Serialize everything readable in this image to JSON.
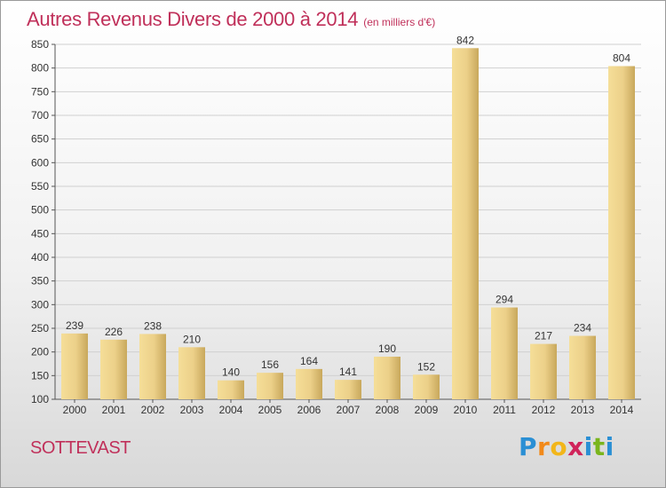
{
  "title": "Autres Revenus Divers de 2000 à 2014",
  "subtitle": "(en milliers d'€)",
  "place": "SOTTEVAST",
  "logo": {
    "text": "Proxiti",
    "letters": [
      {
        "ch": "P",
        "color": "#2a8fd4"
      },
      {
        "ch": "r",
        "color": "#f28a1a"
      },
      {
        "ch": "o",
        "color": "#f2b61a"
      },
      {
        "ch": "x",
        "color": "#d0245a"
      },
      {
        "ch": "i",
        "color": "#2a8fd4"
      },
      {
        "ch": "t",
        "color": "#7ab51d"
      },
      {
        "ch": "i",
        "color": "#2a8fd4"
      }
    ]
  },
  "colors": {
    "title": "#c0305a",
    "bar_light": "#f5de98",
    "bar_dark": "#c8a85c",
    "grid": "#d0d0d0"
  },
  "chart_data": {
    "type": "bar",
    "title": "Autres Revenus Divers de 2000 à 2014",
    "subtitle": "(en milliers d'€)",
    "categories": [
      "2000",
      "2001",
      "2002",
      "2003",
      "2004",
      "2005",
      "2006",
      "2007",
      "2008",
      "2009",
      "2010",
      "2011",
      "2012",
      "2013",
      "2014"
    ],
    "values": [
      239,
      226,
      238,
      210,
      140,
      156,
      164,
      141,
      190,
      152,
      842,
      294,
      217,
      234,
      804
    ],
    "ylim": [
      100,
      850
    ],
    "yticks": [
      100,
      150,
      200,
      250,
      300,
      350,
      400,
      450,
      500,
      550,
      600,
      650,
      700,
      750,
      800,
      850
    ],
    "grid": true,
    "xlabel": "",
    "ylabel": ""
  }
}
